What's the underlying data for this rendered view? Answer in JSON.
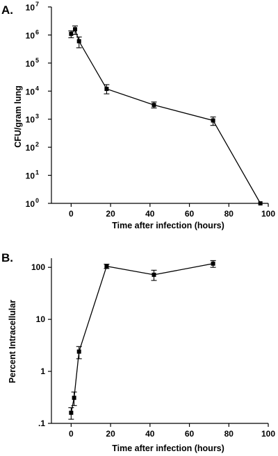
{
  "chart_data": [
    {
      "panel_label": "A.",
      "type": "line",
      "xlabel": "Time after infection (hours)",
      "ylabel": "CFU/gram lung",
      "xlim": [
        -10,
        100
      ],
      "ylim": [
        1,
        10000000
      ],
      "yscale": "log",
      "xticks": [
        0,
        20,
        40,
        60,
        80,
        100
      ],
      "xtick_labels": [
        "0",
        "20",
        "40",
        "60",
        "80",
        "100"
      ],
      "ytick_labels": [
        {
          "base": "10",
          "exp": "0"
        },
        {
          "base": "10",
          "exp": "1"
        },
        {
          "base": "10",
          "exp": "2"
        },
        {
          "base": "10",
          "exp": "3"
        },
        {
          "base": "10",
          "exp": "4"
        },
        {
          "base": "10",
          "exp": "5"
        },
        {
          "base": "10",
          "exp": "6"
        },
        {
          "base": "10",
          "exp": "7"
        }
      ],
      "marker": "square",
      "color": "#000000",
      "grid": false,
      "series": [
        {
          "x": [
            0,
            2,
            4,
            18,
            42,
            72,
            96
          ],
          "y": [
            1100000,
            1600000,
            600000,
            12000,
            3200,
            900,
            1
          ],
          "err_low": [
            800000,
            1050000,
            350000,
            8000,
            2500,
            600,
            1
          ],
          "err_high": [
            1400000,
            2100000,
            850000,
            17000,
            4100,
            1200,
            1
          ]
        }
      ]
    },
    {
      "panel_label": "B.",
      "type": "line",
      "xlabel": "Time after infection (hours)",
      "ylabel": "Percent Intracellular",
      "xlim": [
        -10,
        100
      ],
      "ylim": [
        0.1,
        150
      ],
      "yscale": "log",
      "xticks": [
        0,
        20,
        40,
        60,
        80,
        100
      ],
      "xtick_labels": [
        "0",
        "20",
        "40",
        "60",
        "80",
        "100"
      ],
      "yticks": [
        0.1,
        1,
        10,
        100
      ],
      "ytick_labels": [
        ".1",
        "1",
        "10",
        "100"
      ],
      "marker": "square",
      "color": "#000000",
      "grid": false,
      "series": [
        {
          "x": [
            0,
            1.5,
            4,
            18,
            42,
            72
          ],
          "y": [
            0.16,
            0.31,
            2.4,
            105,
            72,
            118
          ],
          "err_low": [
            0.12,
            0.22,
            1.75,
            95,
            56,
            100
          ],
          "err_high": [
            0.2,
            0.4,
            3.0,
            115,
            88,
            135
          ]
        }
      ]
    }
  ]
}
